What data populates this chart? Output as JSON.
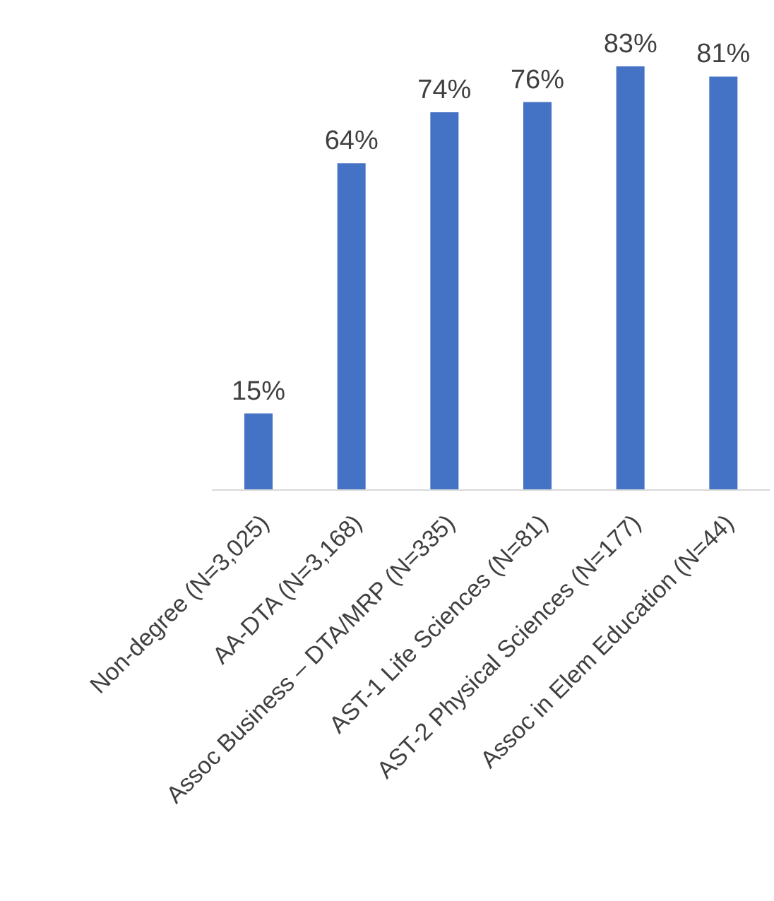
{
  "chart_data": {
    "type": "bar",
    "categories": [
      "Non-degree (N=3,025)",
      "AA-DTA (N=3,168)",
      "Assoc Business – DTA/MRP (N=335)",
      "AST-1 Life Sciences (N=81)",
      "AST-2 Physical Sciences (N=177)",
      "Assoc in Elem Education (N=44)"
    ],
    "values": [
      15,
      64,
      74,
      76,
      83,
      81
    ],
    "value_labels": [
      "15%",
      "64%",
      "74%",
      "76%",
      "83%",
      "81%"
    ],
    "color": "#4472c4"
  }
}
